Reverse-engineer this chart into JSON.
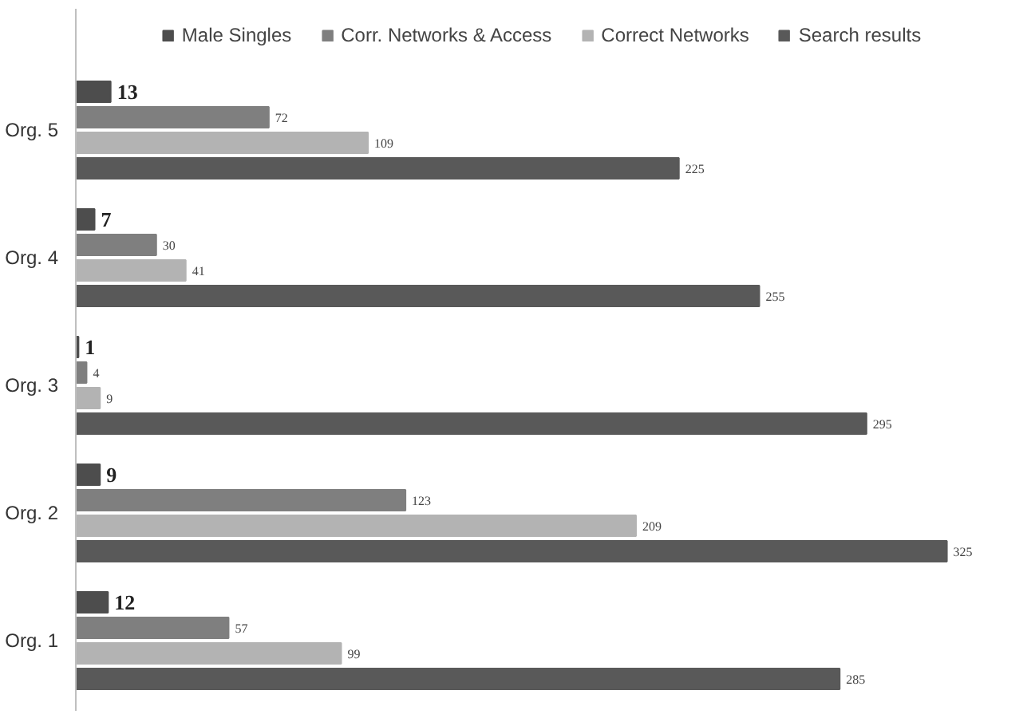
{
  "chart_data": {
    "type": "bar",
    "orientation": "horizontal",
    "categories": [
      "Org. 5",
      "Org. 4",
      "Org. 3",
      "Org. 2",
      "Org. 1"
    ],
    "series": [
      {
        "name": "Male Singles",
        "color": "#4d4d4d",
        "values": [
          13,
          7,
          1,
          9,
          12
        ]
      },
      {
        "name": "Corr. Networks & Access",
        "color": "#7f7f7f",
        "values": [
          72,
          30,
          4,
          123,
          57
        ]
      },
      {
        "name": "Correct Networks",
        "color": "#b3b3b3",
        "values": [
          109,
          41,
          9,
          209,
          99
        ]
      },
      {
        "name": "Search results",
        "color": "#595959",
        "values": [
          225,
          255,
          295,
          325,
          285
        ]
      }
    ],
    "data_labels": true,
    "legend": "top",
    "grid": false,
    "tick_labels": "y"
  }
}
